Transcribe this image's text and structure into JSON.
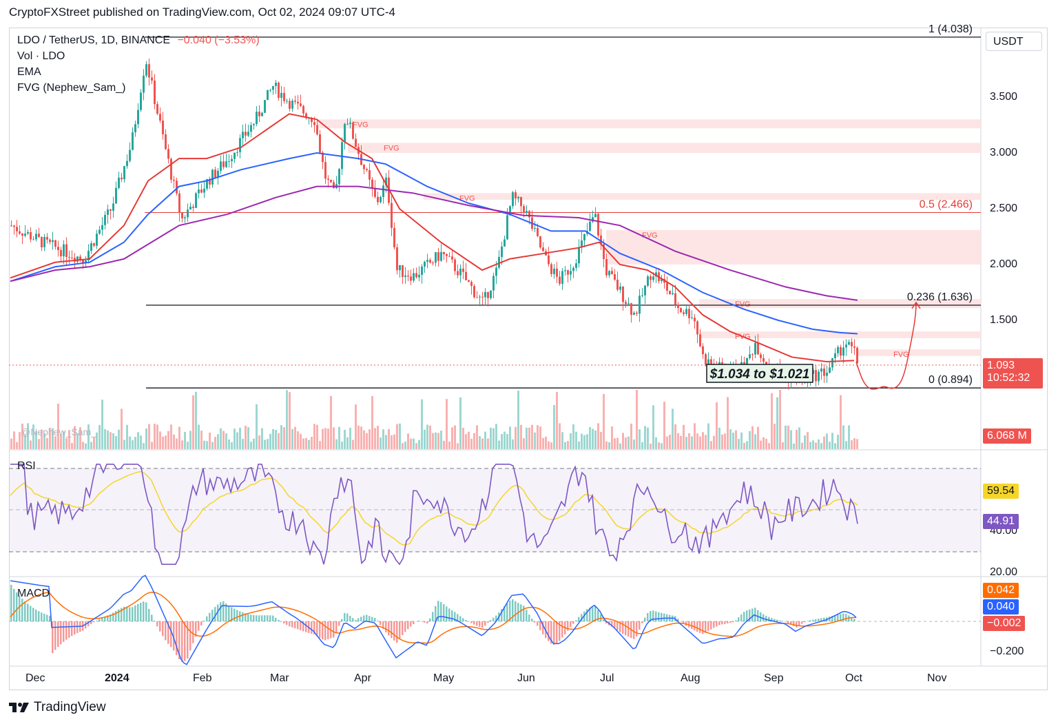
{
  "header": {
    "published": "CryptoFXStreet published on TradingView.com, Oct 02, 2024 09:07 UTC-4"
  },
  "legend": {
    "symbol": "LDO / TetherUS, 1D, BINANCE",
    "change": "−0.040 (−3.53%)",
    "vol": "Vol · LDO",
    "ema": "EMA",
    "fvg": "FVG (Nephew_Sam_)",
    "watermark": "@Nephew_Sam_"
  },
  "currency": "USDT",
  "colors": {
    "up": "#26a69a",
    "down": "#ef5350",
    "ema_fast": "#e53935",
    "ema_mid": "#2962ff",
    "ema_slow": "#9c27b0",
    "rsi": "#7e57c2",
    "rsi_ma": "#f5d627",
    "macd": "#2962ff",
    "signal": "#ff6d00",
    "fvg_zone": "#fde1e1"
  },
  "price_axis": [
    "3.500",
    "3.000",
    "2.500",
    "2.000",
    "1.500"
  ],
  "rsi_axis": [
    "40.00",
    "20.00"
  ],
  "macd_axis": [
    "−0.200"
  ],
  "x_axis": [
    "Dec",
    "2024",
    "Feb",
    "Mar",
    "Apr",
    "May",
    "Jun",
    "Jul",
    "Aug",
    "Sep",
    "Oct",
    "Nov"
  ],
  "badges": {
    "price": "1.093",
    "countdown": "10:52:32",
    "volume": "6.068 M",
    "rsi": "59.54",
    "rsi_ma": "44.91",
    "macd_signal": "0.042",
    "macd": "0.040",
    "macd_hist": "−0.002"
  },
  "pane_titles": {
    "rsi": "RSI",
    "macd": "MACD"
  },
  "fib_levels": [
    {
      "label": "1 (4.038)",
      "price": 4.038
    },
    {
      "label": "0.5 (2.466)",
      "price": 2.466
    },
    {
      "label": "0.236 (1.636)",
      "price": 1.636
    },
    {
      "label": "0 (0.894)",
      "price": 0.894
    }
  ],
  "annotation": {
    "text": "$1.034 to $1.021"
  },
  "fvg_label": "FVG",
  "fvg_zones_price": [
    [
      3.22,
      3.3
    ],
    [
      3.0,
      3.09
    ],
    [
      2.58,
      2.64
    ],
    [
      2.0,
      2.31
    ],
    [
      1.61,
      1.69
    ],
    [
      1.34,
      1.4
    ],
    [
      1.18,
      1.24
    ]
  ],
  "footer": {
    "brand": "TradingView"
  },
  "chart_data": {
    "type": "line",
    "title": "LDO / TetherUS, 1D, BINANCE",
    "x": [
      "Dec",
      "2024",
      "Feb",
      "Mar",
      "Apr",
      "May",
      "Jun",
      "Jul",
      "Aug",
      "Sep",
      "Oct"
    ],
    "ylim": [
      0.75,
      4.1
    ],
    "series": [
      {
        "name": "Price",
        "values": [
          2.35,
          2.2,
          2.9,
          3.45,
          2.75,
          1.95,
          2.35,
          1.7,
          1.15,
          1.05,
          1.09
        ]
      },
      {
        "name": "EMA",
        "values": [
          1.9,
          2.1,
          2.55,
          3.05,
          2.75,
          2.25,
          2.0,
          1.8,
          1.3,
          1.08,
          1.14
        ]
      }
    ]
  }
}
